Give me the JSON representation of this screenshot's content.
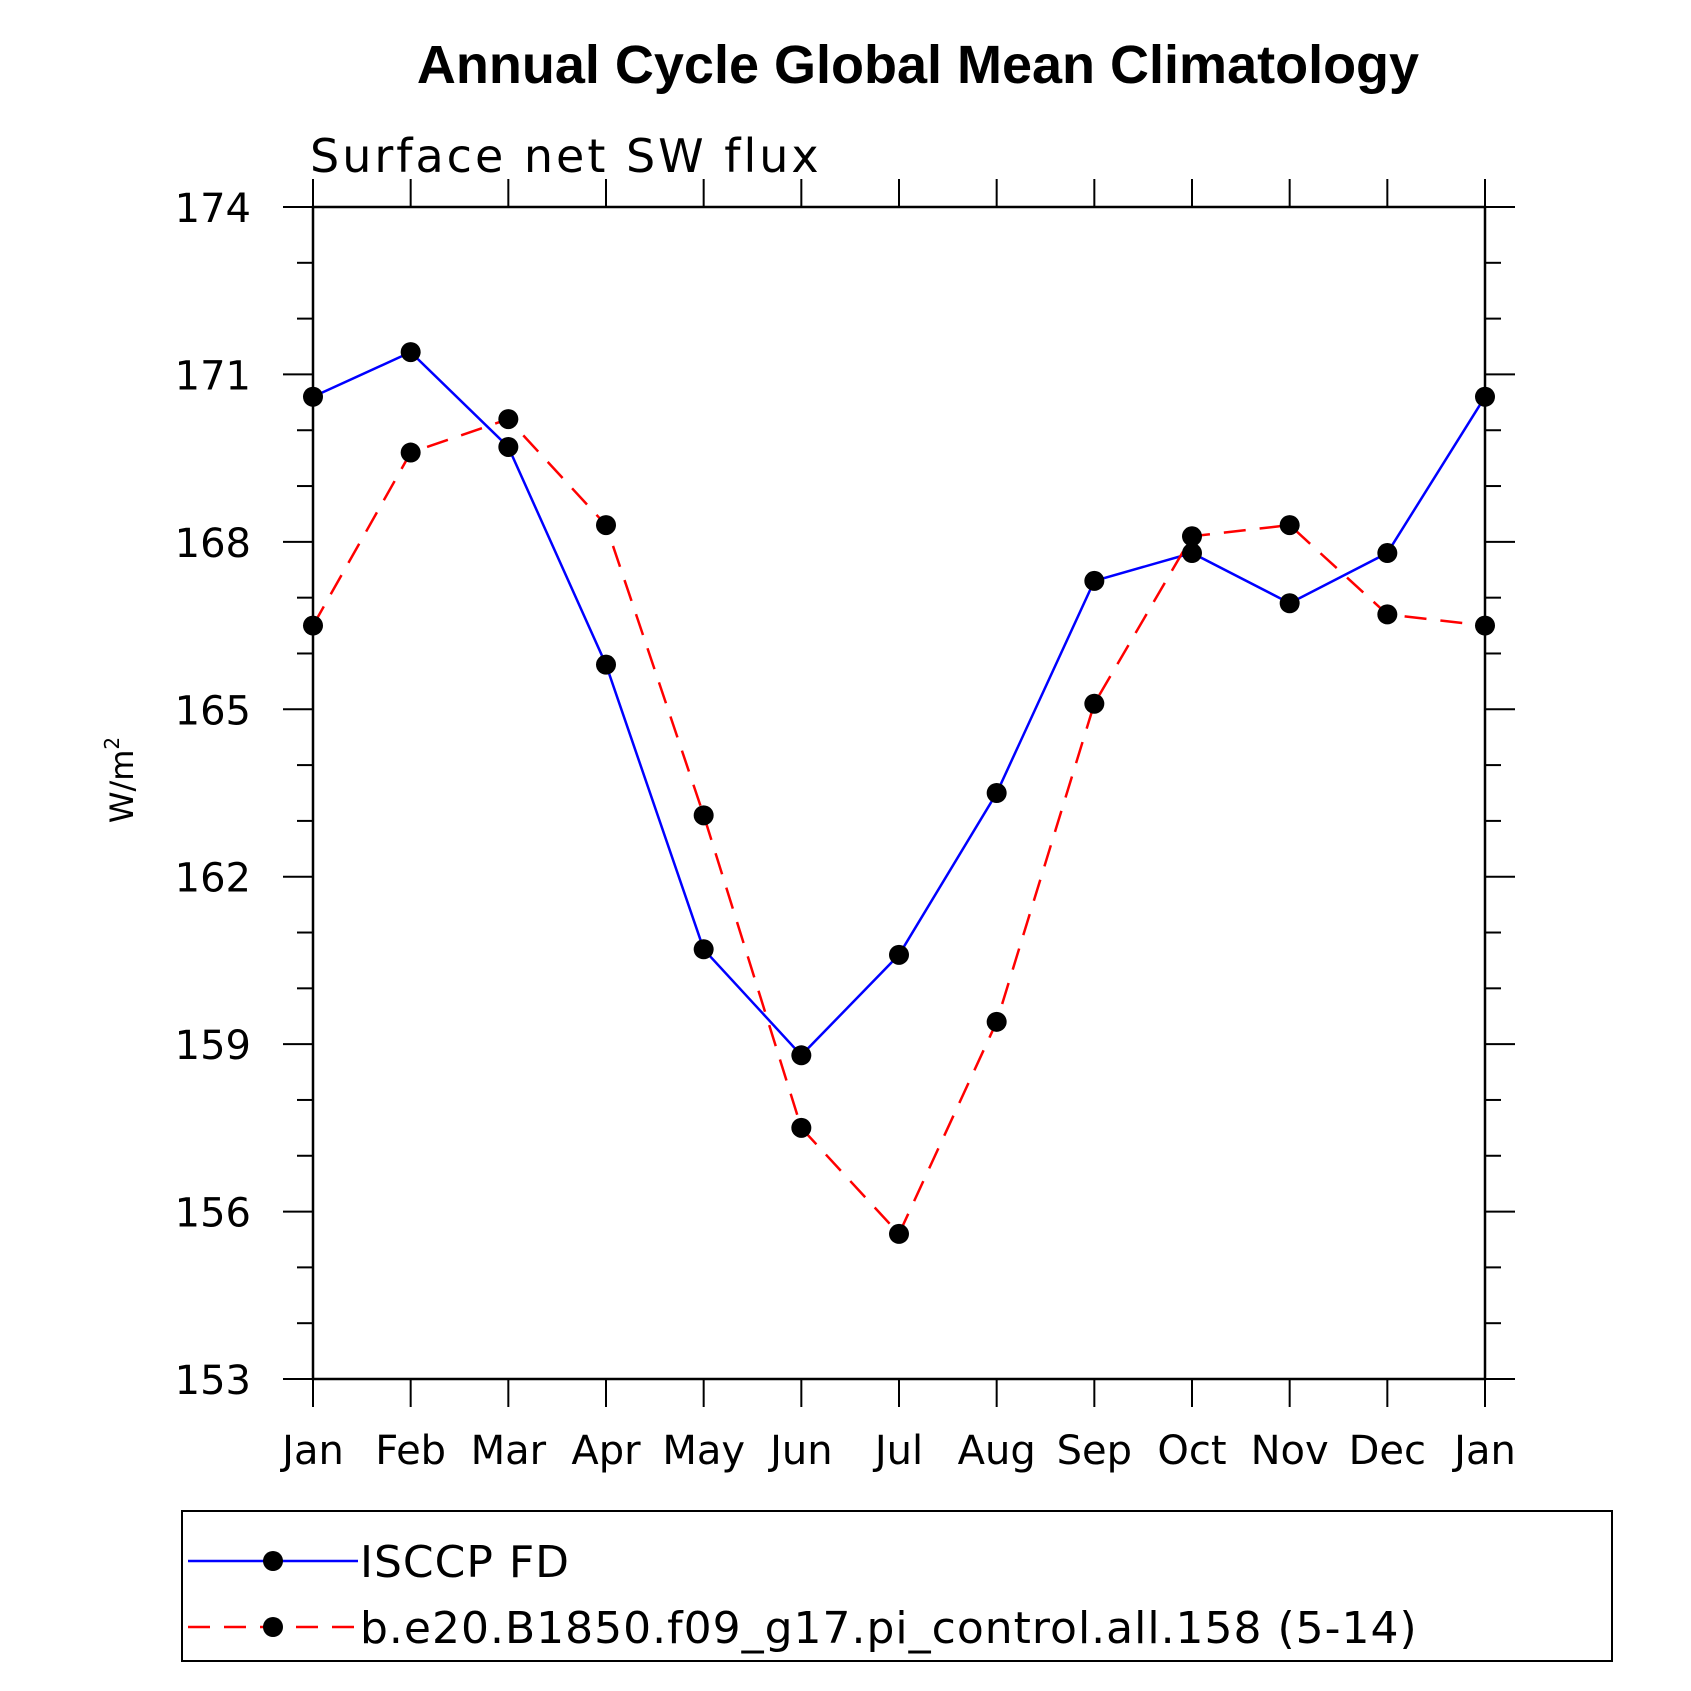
{
  "chart_data": {
    "type": "line",
    "title": "Annual Cycle Global Mean Climatology",
    "subtitle": "Surface net SW flux",
    "ylabel": "W/m",
    "ylabel_superscript": "2",
    "categories": [
      "Jan",
      "Feb",
      "Mar",
      "Apr",
      "May",
      "Jun",
      "Jul",
      "Aug",
      "Sep",
      "Oct",
      "Nov",
      "Dec",
      "Jan"
    ],
    "ylim": [
      153,
      174
    ],
    "yticks": [
      153,
      156,
      159,
      162,
      165,
      168,
      171,
      174
    ],
    "y_minor_step": 1,
    "grid": false,
    "legend_position": "bottom",
    "series": [
      {
        "name": "ISCCP FD",
        "color": "#0000ff",
        "dash": "solid",
        "marker": "filled-circle",
        "values": [
          170.6,
          171.4,
          169.7,
          165.8,
          160.7,
          158.8,
          160.6,
          163.5,
          167.3,
          167.8,
          166.9,
          167.8,
          170.6
        ]
      },
      {
        "name": "b.e20.B1850.f09_g17.pi_control.all.158 (5-14)",
        "color": "#ff0000",
        "dash": "dashed",
        "marker": "filled-circle",
        "values": [
          166.5,
          169.6,
          170.2,
          168.3,
          163.1,
          157.5,
          155.6,
          159.4,
          165.1,
          168.1,
          168.3,
          166.7,
          166.5
        ]
      }
    ]
  }
}
